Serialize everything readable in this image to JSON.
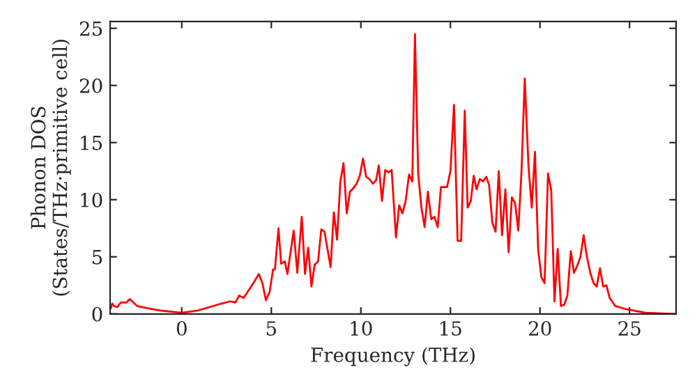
{
  "chart_data": {
    "type": "line",
    "xlabel": "Frequency (THz)",
    "ylabel": "Phonon DOS\n(States/THz·primitive cell)",
    "xlim": [
      -4,
      27.6
    ],
    "ylim": [
      0,
      25.6
    ],
    "xticks": [
      0,
      5,
      10,
      15,
      20,
      25
    ],
    "yticks": [
      0,
      5,
      10,
      15,
      20,
      25
    ],
    "grid": false,
    "legend": false,
    "marker": "none",
    "line_style": "solid",
    "series": [
      {
        "color": "#ff0000",
        "x": [
          -3.96,
          -3.88,
          -3.79,
          -3.6,
          -3.4,
          -3.1,
          -2.9,
          -2.5,
          -1.9,
          -1.2,
          0.0,
          0.9,
          2.2,
          2.7,
          3.0,
          3.2,
          3.45,
          3.75,
          4.0,
          4.3,
          4.5,
          4.7,
          4.9,
          5.1,
          5.2,
          5.4,
          5.55,
          5.75,
          5.9,
          6.25,
          6.45,
          6.7,
          6.88,
          7.06,
          7.24,
          7.42,
          7.61,
          7.79,
          7.97,
          8.31,
          8.49,
          8.67,
          8.85,
          9.03,
          9.21,
          9.39,
          9.58,
          9.76,
          9.94,
          10.12,
          10.3,
          10.48,
          10.67,
          10.85,
          11.0,
          11.18,
          11.36,
          11.54,
          11.72,
          11.96,
          12.14,
          12.32,
          12.5,
          12.69,
          12.87,
          13.02,
          13.2,
          13.38,
          13.56,
          13.74,
          13.93,
          14.11,
          14.29,
          14.47,
          14.81,
          15.0,
          15.2,
          15.4,
          15.6,
          15.8,
          15.96,
          16.14,
          16.3,
          16.46,
          16.64,
          16.82,
          17.0,
          17.16,
          17.34,
          17.52,
          17.7,
          17.88,
          18.07,
          18.25,
          18.43,
          18.61,
          18.79,
          18.97,
          19.15,
          19.36,
          19.54,
          19.72,
          19.9,
          20.08,
          20.26,
          20.45,
          20.63,
          20.81,
          20.99,
          21.17,
          21.35,
          21.53,
          21.72,
          21.9,
          22.08,
          22.26,
          22.44,
          22.62,
          22.81,
          22.99,
          23.17,
          23.35,
          23.53,
          23.71,
          23.89,
          24.2,
          24.85,
          25.9,
          27.6
        ],
        "values": [
          0.5,
          0.9,
          0.7,
          0.6,
          1.0,
          1.0,
          1.3,
          0.7,
          0.5,
          0.3,
          0.1,
          0.3,
          0.9,
          1.1,
          1.0,
          1.6,
          1.4,
          2.1,
          2.7,
          3.5,
          2.7,
          1.2,
          1.9,
          3.9,
          3.9,
          7.5,
          4.4,
          4.6,
          3.5,
          7.3,
          3.6,
          8.5,
          3.5,
          5.8,
          2.4,
          4.3,
          4.6,
          7.4,
          7.2,
          4.1,
          8.9,
          6.5,
          11.5,
          13.2,
          8.8,
          10.7,
          11.0,
          11.4,
          12.1,
          13.6,
          12.0,
          11.8,
          11.4,
          11.7,
          13.0,
          9.9,
          12.6,
          12.4,
          12.6,
          6.7,
          9.5,
          8.8,
          9.9,
          12.2,
          11.6,
          24.5,
          12.3,
          9.3,
          7.6,
          10.7,
          8.3,
          8.5,
          7.6,
          11.1,
          11.1,
          12.5,
          18.3,
          6.4,
          6.4,
          17.8,
          9.3,
          9.9,
          12.1,
          10.9,
          11.8,
          11.6,
          12.0,
          11.3,
          8.0,
          7.2,
          12.5,
          6.9,
          10.9,
          5.4,
          10.2,
          9.7,
          7.3,
          12.5,
          20.6,
          12.9,
          9.3,
          14.2,
          5.6,
          3.2,
          2.7,
          12.3,
          10.8,
          1.1,
          5.7,
          0.7,
          0.8,
          1.6,
          5.5,
          3.6,
          4.2,
          5.0,
          6.9,
          5.0,
          3.6,
          2.7,
          2.4,
          4.0,
          2.4,
          2.5,
          1.4,
          0.7,
          0.4,
          0.1,
          0.0
        ]
      }
    ]
  }
}
